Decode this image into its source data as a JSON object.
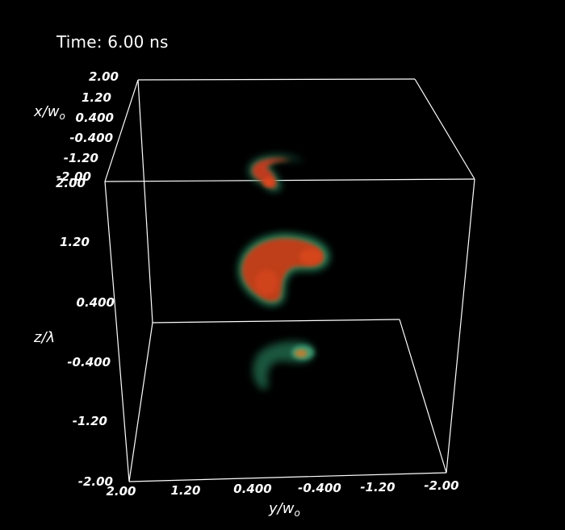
{
  "time_label": "Time: 6.00 ns",
  "axes": {
    "x": {
      "title_main": "x/w",
      "title_sub": "o",
      "ticks": [
        "2.00",
        "1.20",
        "0.400",
        "-0.400",
        "-1.20",
        "-2.00"
      ]
    },
    "y": {
      "title_main": "y/w",
      "title_sub": "o",
      "ticks": [
        "2.00",
        "1.20",
        "0.400",
        "-0.400",
        "-1.20",
        "-2.00"
      ]
    },
    "z": {
      "title": "z/λ",
      "ticks": [
        "2.00",
        "1.20",
        "0.400",
        "-0.400",
        "-1.20",
        "-2.00"
      ]
    }
  },
  "colors": {
    "background": "#000000",
    "frame": "#ffffff",
    "volume_core": "#d8401a",
    "volume_edge": "#36a070"
  }
}
